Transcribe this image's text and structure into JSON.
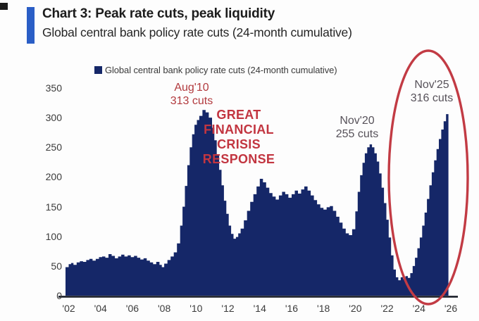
{
  "header": {
    "title": "Chart 3: Peak rate cuts, peak liquidity",
    "subtitle": "Global central bank policy rate cuts (24-month cumulative)",
    "accent_color": "#2a5ec6"
  },
  "legend": {
    "label": "Global central bank policy rate cuts (24-month cumulative)",
    "marker_color": "#152768"
  },
  "chart_data": {
    "type": "area",
    "title": "Global central bank policy rate cuts (24-month cumulative)",
    "xlabel": "",
    "ylabel": "",
    "ylim": [
      0,
      350
    ],
    "yticks": [
      0,
      50,
      100,
      150,
      200,
      250,
      300,
      350
    ],
    "xticks": [
      {
        "year": 2002,
        "label": "'02"
      },
      {
        "year": 2004,
        "label": "'04"
      },
      {
        "year": 2006,
        "label": "'06"
      },
      {
        "year": 2008,
        "label": "'08"
      },
      {
        "year": 2010,
        "label": "'10"
      },
      {
        "year": 2012,
        "label": "'12"
      },
      {
        "year": 2014,
        "label": "'14"
      },
      {
        "year": 2016,
        "label": "'16"
      },
      {
        "year": 2018,
        "label": "'18"
      },
      {
        "year": 2020,
        "label": "'20"
      },
      {
        "year": 2022,
        "label": "'22"
      },
      {
        "year": 2024,
        "label": "'24"
      },
      {
        "year": 2026,
        "label": "'26"
      }
    ],
    "x_range": [
      2001.8,
      2026
    ],
    "grid": false,
    "legend_position": "top-center",
    "series": [
      {
        "name": "Global central bank policy rate cuts (24-month cumulative)",
        "color": "#152768",
        "points": [
          [
            2001.8,
            48
          ],
          [
            2002.0,
            53
          ],
          [
            2002.15,
            55
          ],
          [
            2002.3,
            52
          ],
          [
            2002.5,
            56
          ],
          [
            2002.7,
            58
          ],
          [
            2002.9,
            57
          ],
          [
            2003.1,
            60
          ],
          [
            2003.3,
            62
          ],
          [
            2003.5,
            59
          ],
          [
            2003.7,
            62
          ],
          [
            2003.9,
            65
          ],
          [
            2004.1,
            66
          ],
          [
            2004.3,
            64
          ],
          [
            2004.5,
            70
          ],
          [
            2004.7,
            67
          ],
          [
            2004.9,
            63
          ],
          [
            2005.1,
            66
          ],
          [
            2005.3,
            69
          ],
          [
            2005.5,
            66
          ],
          [
            2005.7,
            68
          ],
          [
            2005.9,
            65
          ],
          [
            2006.1,
            67
          ],
          [
            2006.3,
            64
          ],
          [
            2006.5,
            61
          ],
          [
            2006.7,
            63
          ],
          [
            2006.9,
            59
          ],
          [
            2007.1,
            56
          ],
          [
            2007.3,
            53
          ],
          [
            2007.5,
            57
          ],
          [
            2007.7,
            52
          ],
          [
            2007.85,
            48
          ],
          [
            2008.0,
            54
          ],
          [
            2008.2,
            60
          ],
          [
            2008.4,
            66
          ],
          [
            2008.6,
            73
          ],
          [
            2008.8,
            88
          ],
          [
            2009.0,
            118
          ],
          [
            2009.15,
            150
          ],
          [
            2009.3,
            185
          ],
          [
            2009.45,
            220
          ],
          [
            2009.6,
            250
          ],
          [
            2009.75,
            272
          ],
          [
            2009.9,
            288
          ],
          [
            2010.05,
            296
          ],
          [
            2010.2,
            303
          ],
          [
            2010.4,
            313
          ],
          [
            2010.6,
            309
          ],
          [
            2010.8,
            300
          ],
          [
            2011.0,
            283
          ],
          [
            2011.15,
            262
          ],
          [
            2011.3,
            238
          ],
          [
            2011.45,
            212
          ],
          [
            2011.6,
            186
          ],
          [
            2011.75,
            160
          ],
          [
            2011.9,
            138
          ],
          [
            2012.05,
            118
          ],
          [
            2012.2,
            104
          ],
          [
            2012.35,
            96
          ],
          [
            2012.5,
            99
          ],
          [
            2012.65,
            105
          ],
          [
            2012.8,
            113
          ],
          [
            2013.0,
            127
          ],
          [
            2013.2,
            143
          ],
          [
            2013.4,
            158
          ],
          [
            2013.6,
            171
          ],
          [
            2013.8,
            184
          ],
          [
            2014.0,
            197
          ],
          [
            2014.2,
            191
          ],
          [
            2014.4,
            182
          ],
          [
            2014.6,
            173
          ],
          [
            2014.8,
            167
          ],
          [
            2015.0,
            162
          ],
          [
            2015.2,
            169
          ],
          [
            2015.4,
            175
          ],
          [
            2015.6,
            171
          ],
          [
            2015.8,
            165
          ],
          [
            2016.0,
            171
          ],
          [
            2016.2,
            177
          ],
          [
            2016.4,
            172
          ],
          [
            2016.6,
            179
          ],
          [
            2016.8,
            184
          ],
          [
            2017.0,
            177
          ],
          [
            2017.2,
            169
          ],
          [
            2017.4,
            161
          ],
          [
            2017.6,
            154
          ],
          [
            2017.8,
            148
          ],
          [
            2018.0,
            145
          ],
          [
            2018.2,
            149
          ],
          [
            2018.4,
            151
          ],
          [
            2018.6,
            143
          ],
          [
            2018.8,
            133
          ],
          [
            2019.0,
            123
          ],
          [
            2019.2,
            113
          ],
          [
            2019.4,
            105
          ],
          [
            2019.6,
            102
          ],
          [
            2019.8,
            112
          ],
          [
            2020.0,
            142
          ],
          [
            2020.15,
            175
          ],
          [
            2020.3,
            203
          ],
          [
            2020.45,
            224
          ],
          [
            2020.6,
            240
          ],
          [
            2020.75,
            250
          ],
          [
            2020.9,
            255
          ],
          [
            2021.05,
            250
          ],
          [
            2021.2,
            240
          ],
          [
            2021.35,
            226
          ],
          [
            2021.5,
            206
          ],
          [
            2021.65,
            182
          ],
          [
            2021.8,
            156
          ],
          [
            2021.95,
            128
          ],
          [
            2022.1,
            98
          ],
          [
            2022.25,
            68
          ],
          [
            2022.4,
            44
          ],
          [
            2022.55,
            31
          ],
          [
            2022.7,
            26
          ],
          [
            2022.85,
            31
          ],
          [
            2023.0,
            28
          ],
          [
            2023.15,
            33
          ],
          [
            2023.3,
            30
          ],
          [
            2023.45,
            38
          ],
          [
            2023.6,
            50
          ],
          [
            2023.75,
            64
          ],
          [
            2023.9,
            80
          ],
          [
            2024.05,
            98
          ],
          [
            2024.2,
            118
          ],
          [
            2024.35,
            140
          ],
          [
            2024.5,
            163
          ],
          [
            2024.65,
            186
          ],
          [
            2024.8,
            208
          ],
          [
            2024.95,
            228
          ],
          [
            2025.1,
            247
          ],
          [
            2025.25,
            264
          ],
          [
            2025.4,
            280
          ],
          [
            2025.55,
            294
          ],
          [
            2025.7,
            306
          ],
          [
            2025.85,
            316
          ]
        ]
      }
    ],
    "annotations": [
      {
        "id": "aug10-peak",
        "text": "Aug'10\n313 cuts",
        "value": 313,
        "color": "#b23a3e"
      },
      {
        "id": "gfc-note",
        "text": "GREAT\nFINANCIAL\nCRISIS\nRESPONSE",
        "color": "#c23540"
      },
      {
        "id": "nov20-peak",
        "text": "Nov'20\n255 cuts",
        "value": 255,
        "color": "#57525a"
      },
      {
        "id": "nov25-peak",
        "text": "Nov'25\n316 cuts",
        "value": 316,
        "color": "#57525a"
      }
    ],
    "highlight_ellipse": {
      "color": "#c23b44",
      "around": "Nov'25 peak"
    }
  }
}
